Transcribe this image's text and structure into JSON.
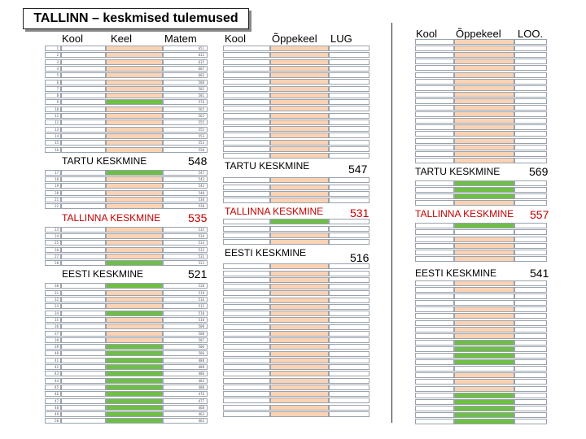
{
  "title": "TALLINN – keskmised tulemused",
  "colors": {
    "peach": "#fbd3b4",
    "green": "#6fbe45",
    "white": "#ffffff"
  },
  "panel1": {
    "headers": {
      "kool": "Kool",
      "keel": "Keel",
      "matem": "Matem"
    },
    "rows": [
      {
        "n": "1",
        "k": "p",
        "v": "651"
      },
      {
        "n": "2",
        "k": "p",
        "v": "632"
      },
      {
        "n": "3",
        "k": "p",
        "v": "615"
      },
      {
        "n": "4",
        "k": "p",
        "v": "607"
      },
      {
        "n": "5",
        "k": "p",
        "v": "603"
      },
      {
        "n": "6",
        "k": "p",
        "v": "588"
      },
      {
        "n": "7",
        "k": "p",
        "v": "582"
      },
      {
        "n": "8",
        "k": "p",
        "v": "581"
      },
      {
        "n": "9",
        "k": "g",
        "v": "576"
      },
      {
        "n": "10",
        "k": "p",
        "v": "565"
      },
      {
        "n": "11",
        "k": "p",
        "v": "562"
      },
      {
        "n": "12",
        "k": "p",
        "v": "555"
      },
      {
        "n": "13",
        "k": "p",
        "v": "555"
      },
      {
        "n": "14",
        "k": "p",
        "v": "553"
      },
      {
        "n": "15",
        "k": "p",
        "v": "553"
      },
      {
        "n": "16",
        "k": "p",
        "v": "550"
      },
      {
        "n": "",
        "k": "",
        "v": "",
        "sep": "tartu"
      },
      {
        "n": "17",
        "k": "g",
        "v": "547"
      },
      {
        "n": "18",
        "k": "p",
        "v": "543"
      },
      {
        "n": "19",
        "k": "p",
        "v": "543"
      },
      {
        "n": "20",
        "k": "p",
        "v": "540"
      },
      {
        "n": "21",
        "k": "p",
        "v": "538"
      },
      {
        "n": "22",
        "k": "p",
        "v": "536"
      },
      {
        "n": "",
        "k": "",
        "v": "",
        "sep": "tallinna"
      },
      {
        "n": "23",
        "k": "p",
        "v": "535"
      },
      {
        "n": "24",
        "k": "p",
        "v": "534"
      },
      {
        "n": "25",
        "k": "p",
        "v": "533"
      },
      {
        "n": "26",
        "k": "p",
        "v": "533"
      },
      {
        "n": "27",
        "k": "p",
        "v": "531"
      },
      {
        "n": "28",
        "k": "g",
        "v": "523"
      },
      {
        "n": "",
        "k": "",
        "v": "",
        "sep": "eesti"
      },
      {
        "n": "30",
        "k": "g",
        "v": "520"
      },
      {
        "n": "31",
        "k": "p",
        "v": "519"
      },
      {
        "n": "32",
        "k": "p",
        "v": "516"
      },
      {
        "n": "33",
        "k": "p",
        "v": "512"
      },
      {
        "n": "34",
        "k": "g",
        "v": "510"
      },
      {
        "n": "35",
        "k": "p",
        "v": "510"
      },
      {
        "n": "36",
        "k": "p",
        "v": "508"
      },
      {
        "n": "37",
        "k": "p",
        "v": "508"
      },
      {
        "n": "38",
        "k": "p",
        "v": "507"
      },
      {
        "n": "39",
        "k": "g",
        "v": "506"
      },
      {
        "n": "40",
        "k": "g",
        "v": "506"
      },
      {
        "n": "41",
        "k": "g",
        "v": "488"
      },
      {
        "n": "42",
        "k": "g",
        "v": "488"
      },
      {
        "n": "43",
        "k": "g",
        "v": "486"
      },
      {
        "n": "44",
        "k": "g",
        "v": "483"
      },
      {
        "n": "45",
        "k": "g",
        "v": "480"
      },
      {
        "n": "46",
        "k": "g",
        "v": "476"
      },
      {
        "n": "47",
        "k": "g",
        "v": "477"
      },
      {
        "n": "48",
        "k": "g",
        "v": "468"
      },
      {
        "n": "49",
        "k": "g",
        "v": "463"
      },
      {
        "n": "50",
        "k": "g",
        "v": "463"
      }
    ],
    "separators": {
      "tartu": {
        "label": "TARTU KESKMINE",
        "value": "548"
      },
      "tallinna": {
        "label": "TALLINNA KESKMINE",
        "value": "535"
      },
      "eesti": {
        "label": "EESTI KESKMINE",
        "value": "521"
      }
    }
  },
  "panel2": {
    "headers": {
      "kool": "Kool",
      "oppekeel": "Õppekeel",
      "lug": "LUG"
    },
    "separators": {
      "tartu": {
        "label": "TARTU KESKMINE",
        "value": "547"
      },
      "tallinna": {
        "label": "TALLINNA KESKMINE",
        "value": "531"
      },
      "eesti": {
        "label": "EESTI KESKMINE",
        "value": "516"
      }
    }
  },
  "panel3": {
    "headers": {
      "kool": "Kool",
      "oppekeel": "Õppekeel",
      "loo": "LOO."
    },
    "separators": {
      "tartu": {
        "label": "TARTU KESKMINE",
        "value": "569"
      },
      "tallinna": {
        "label": "TALLINNA KESKMINE",
        "value": "557"
      },
      "eesti": {
        "label": "EESTI KESKMINE",
        "value": "541"
      }
    }
  }
}
